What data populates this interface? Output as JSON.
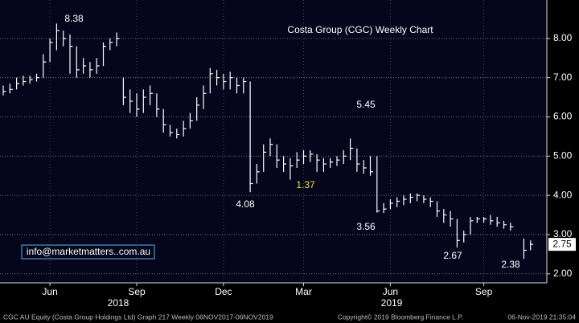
{
  "chart_data": {
    "type": "hlc",
    "title": "Costa Group (CGC) Weekly Chart",
    "title_color": "#7fd87f",
    "color": "#ffffff",
    "grid": true,
    "categories": [
      null,
      null,
      null,
      null,
      null,
      null,
      null,
      "Jun",
      null,
      null,
      null,
      null,
      null,
      null,
      null,
      null,
      null,
      null,
      null,
      null,
      "Sep",
      null,
      null,
      null,
      null,
      null,
      null,
      null,
      null,
      null,
      null,
      null,
      null,
      "Dec",
      null,
      null,
      null,
      null,
      null,
      null,
      null,
      null,
      null,
      null,
      null,
      "Mar",
      null,
      null,
      null,
      null,
      null,
      null,
      null,
      null,
      null,
      null,
      null,
      null,
      "Jun",
      null,
      null,
      null,
      null,
      null,
      null,
      null,
      null,
      null,
      null,
      null,
      null,
      null,
      "Sep",
      null,
      null,
      null,
      null,
      null,
      null,
      null
    ],
    "years": [
      "2018",
      "2019"
    ],
    "high": [
      6.8,
      6.85,
      7.0,
      7.05,
      7.05,
      7.1,
      7.6,
      8.0,
      8.38,
      8.2,
      8.1,
      7.8,
      7.5,
      7.4,
      7.5,
      7.9,
      8.0,
      8.15,
      7.0,
      6.7,
      6.6,
      6.7,
      6.8,
      6.6,
      6.2,
      5.8,
      5.7,
      5.9,
      6.1,
      6.5,
      6.8,
      7.25,
      7.2,
      7.1,
      7.15,
      7.0,
      7.0,
      6.9,
      4.8,
      5.3,
      5.45,
      5.3,
      5.0,
      4.95,
      5.1,
      5.15,
      5.15,
      5.05,
      4.95,
      4.95,
      5.0,
      5.15,
      5.45,
      5.2,
      4.9,
      5.0,
      5.0,
      3.8,
      3.9,
      3.95,
      4.0,
      4.05,
      4.05,
      4.0,
      3.95,
      3.85,
      3.65,
      3.6,
      3.4,
      3.1,
      3.45,
      3.45,
      3.45,
      3.5,
      3.45,
      3.35,
      3.3,
      null,
      2.9,
      2.85
    ],
    "low": [
      6.55,
      6.6,
      6.7,
      6.8,
      6.85,
      6.9,
      7.0,
      7.4,
      7.7,
      7.8,
      7.1,
      7.0,
      7.1,
      7.0,
      7.1,
      7.3,
      7.7,
      7.8,
      6.3,
      6.1,
      6.0,
      6.1,
      6.3,
      6.0,
      5.6,
      5.5,
      5.45,
      5.5,
      5.7,
      5.9,
      6.2,
      6.6,
      6.8,
      6.7,
      6.7,
      6.6,
      6.6,
      4.08,
      4.3,
      4.6,
      5.0,
      4.7,
      4.6,
      4.4,
      4.7,
      4.8,
      4.85,
      4.6,
      4.6,
      4.7,
      4.75,
      4.8,
      4.9,
      4.6,
      4.55,
      4.5,
      3.56,
      3.55,
      3.65,
      3.7,
      3.75,
      3.8,
      3.85,
      3.8,
      3.7,
      3.45,
      3.3,
      3.2,
      2.67,
      2.8,
      3.0,
      3.3,
      3.3,
      3.25,
      3.2,
      3.15,
      3.1,
      null,
      2.38,
      2.6
    ],
    "close": [
      6.65,
      6.7,
      6.85,
      6.9,
      6.95,
      7.0,
      7.4,
      7.9,
      8.2,
      8.0,
      7.8,
      7.2,
      7.3,
      7.2,
      7.3,
      7.8,
      7.9,
      8.0,
      6.5,
      6.4,
      6.2,
      6.5,
      6.6,
      6.2,
      5.8,
      5.6,
      5.55,
      5.7,
      5.9,
      6.3,
      6.6,
      7.1,
      7.0,
      6.9,
      7.0,
      6.8,
      6.9,
      4.3,
      4.6,
      5.1,
      5.3,
      4.9,
      4.8,
      4.75,
      4.9,
      5.0,
      5.05,
      4.9,
      4.8,
      4.85,
      4.9,
      5.0,
      5.2,
      4.8,
      4.7,
      4.6,
      3.6,
      3.65,
      3.8,
      3.85,
      3.9,
      3.95,
      4.0,
      3.9,
      3.85,
      3.6,
      3.5,
      3.4,
      2.85,
      3.0,
      3.35,
      3.4,
      3.4,
      3.35,
      3.3,
      3.25,
      3.2,
      null,
      2.6,
      2.75
    ],
    "ylim": [
      1.77,
      8.98
    ],
    "yticks": [
      {
        "value": 2,
        "label": "2.00"
      },
      {
        "value": 3,
        "label": "3.00"
      },
      {
        "value": 4,
        "label": "4.00"
      },
      {
        "value": 5,
        "label": "5.00"
      },
      {
        "value": 6,
        "label": "6.00"
      },
      {
        "value": 7,
        "label": "7.00"
      },
      {
        "value": 8,
        "label": "8.00"
      }
    ],
    "last_price": 2.75,
    "annotations": [
      {
        "text": "8.38",
        "color": "#ffffff"
      },
      {
        "text": "5.45",
        "color": "#ffffff"
      },
      {
        "text": "4.08",
        "color": "#ffffff"
      },
      {
        "text": "1.37",
        "color": "#f0e040"
      },
      {
        "text": "3.56",
        "color": "#ffffff"
      },
      {
        "text": "2.67",
        "color": "#ffffff"
      },
      {
        "text": "2.38",
        "color": "#ffffff"
      }
    ],
    "email": "info@marketmatters..com.au",
    "footer": [
      "CGC AU Equity (Costa Group Holdings Ltd) Graph 217  Weekly 06NOV2017-06NOV2019",
      "Copyright© 2019 Bloomberg Finance L.P.",
      "06-Nov-2019 21:35:04"
    ]
  }
}
